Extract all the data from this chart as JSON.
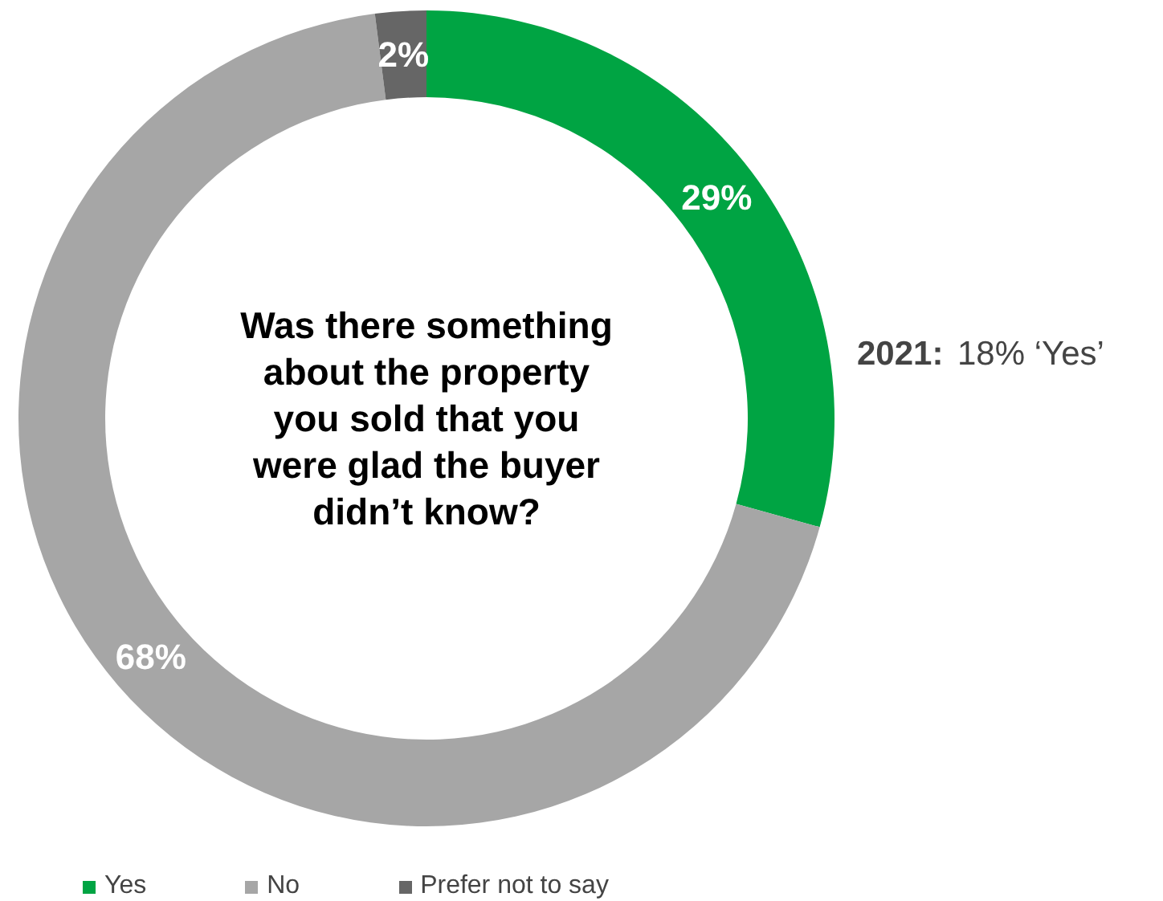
{
  "chart_data": {
    "type": "donut",
    "title": "Was there something about the property you sold that you were glad the buyer didn’t know?",
    "categories": [
      "Yes",
      "No",
      "Prefer not to say"
    ],
    "values": [
      29,
      68,
      2
    ],
    "colors": [
      "#00a443",
      "#a6a6a6",
      "#666666"
    ],
    "value_labels": [
      "29%",
      "68%",
      "2%"
    ],
    "annotations": [
      "2021: 18% ‘Yes’"
    ],
    "legend": "bottom left"
  }
}
